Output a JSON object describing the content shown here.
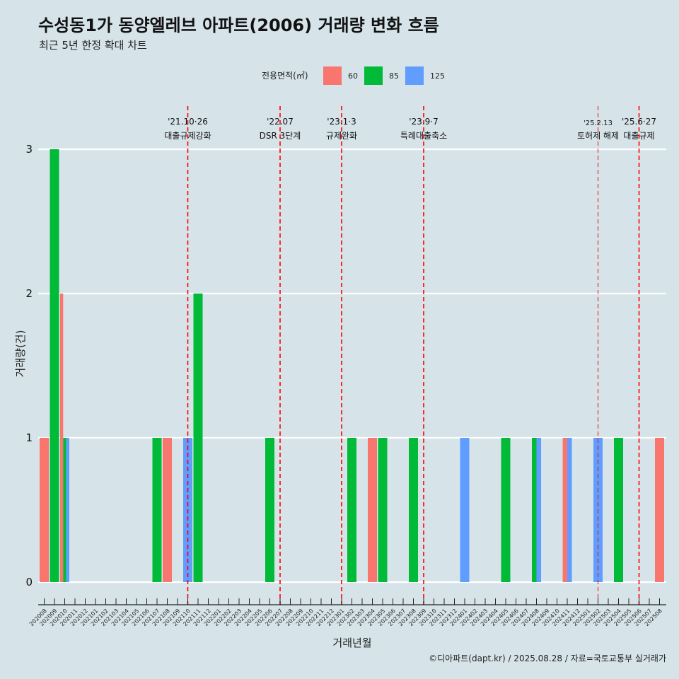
{
  "chart_data": {
    "type": "bar",
    "title": "수성동1가 동양엘레브 아파트(2006) 거래량 변화 흐름",
    "subtitle": "최근 5년 한정 확대 차트",
    "xlabel": "거래년월",
    "ylabel": "거래량(건)",
    "ylim": [
      0,
      3
    ],
    "yticks": [
      0,
      1,
      2,
      3
    ],
    "caption": "©디아파트(dapt.kr) / 2025.08.28 / 자료=국토교통부 실거래가",
    "legend": {
      "title": "전용면적(㎡)",
      "position": "top",
      "entries": [
        {
          "name": "60",
          "color": "#f8766d"
        },
        {
          "name": "85",
          "color": "#00ba38"
        },
        {
          "name": "125",
          "color": "#619cff"
        }
      ]
    },
    "categories": [
      "202008",
      "202009",
      "202010",
      "202011",
      "202012",
      "202101",
      "202102",
      "202103",
      "202104",
      "202105",
      "202106",
      "202107",
      "202108",
      "202109",
      "202110",
      "202111",
      "202112",
      "202201",
      "202202",
      "202203",
      "202204",
      "202205",
      "202206",
      "202207",
      "202208",
      "202209",
      "202210",
      "202211",
      "202212",
      "202301",
      "202302",
      "202303",
      "202304",
      "202305",
      "202306",
      "202307",
      "202308",
      "202309",
      "202310",
      "202311",
      "202312",
      "202401",
      "202402",
      "202403",
      "202404",
      "202405",
      "202406",
      "202407",
      "202408",
      "202409",
      "202410",
      "202411",
      "202412",
      "202501",
      "202502",
      "202503",
      "202504",
      "202505",
      "202506",
      "202507",
      "202508"
    ],
    "bars": [
      {
        "month": "202008",
        "series": "60",
        "value": 1,
        "slot": 0,
        "slots": 1
      },
      {
        "month": "202009",
        "series": "85",
        "value": 3,
        "slot": 0,
        "slots": 1
      },
      {
        "month": "202010",
        "series": "60",
        "value": 2,
        "slot": 0,
        "slots": 3
      },
      {
        "month": "202010",
        "series": "85",
        "value": 1,
        "slot": 1,
        "slots": 3
      },
      {
        "month": "202010",
        "series": "125",
        "value": 1,
        "slot": 2,
        "slots": 3
      },
      {
        "month": "202107",
        "series": "85",
        "value": 1,
        "slot": 0,
        "slots": 1
      },
      {
        "month": "202108",
        "series": "60",
        "value": 1,
        "slot": 0,
        "slots": 1
      },
      {
        "month": "202110",
        "series": "125",
        "value": 1,
        "slot": 0,
        "slots": 1
      },
      {
        "month": "202111",
        "series": "85",
        "value": 2,
        "slot": 0,
        "slots": 1
      },
      {
        "month": "202206",
        "series": "85",
        "value": 1,
        "slot": 0,
        "slots": 1
      },
      {
        "month": "202302",
        "series": "85",
        "value": 1,
        "slot": 0,
        "slots": 1
      },
      {
        "month": "202304",
        "series": "60",
        "value": 1,
        "slot": 0,
        "slots": 1
      },
      {
        "month": "202305",
        "series": "85",
        "value": 1,
        "slot": 0,
        "slots": 1
      },
      {
        "month": "202308",
        "series": "85",
        "value": 1,
        "slot": 0,
        "slots": 1
      },
      {
        "month": "202401",
        "series": "125",
        "value": 1,
        "slot": 0,
        "slots": 1
      },
      {
        "month": "202405",
        "series": "85",
        "value": 1,
        "slot": 0,
        "slots": 1
      },
      {
        "month": "202408",
        "series": "85",
        "value": 1,
        "slot": 0,
        "slots": 2
      },
      {
        "month": "202408",
        "series": "125",
        "value": 1,
        "slot": 1,
        "slots": 2
      },
      {
        "month": "202411",
        "series": "60",
        "value": 1,
        "slot": 0,
        "slots": 2
      },
      {
        "month": "202411",
        "series": "125",
        "value": 1,
        "slot": 1,
        "slots": 2
      },
      {
        "month": "202502",
        "series": "125",
        "value": 1,
        "slot": 0,
        "slots": 1
      },
      {
        "month": "202504",
        "series": "85",
        "value": 1,
        "slot": 0,
        "slots": 1
      },
      {
        "month": "202508",
        "series": "60",
        "value": 1,
        "slot": 0,
        "slots": 1
      }
    ],
    "events": [
      {
        "x": 14.0,
        "date": "'21.10·26",
        "label": "대출규제강화",
        "small": false
      },
      {
        "x": 23.0,
        "date": "'22.07",
        "label": "DSR 3단계",
        "small": false
      },
      {
        "x": 29.0,
        "date": "'23.1·3",
        "label": "규제완화",
        "small": false
      },
      {
        "x": 37.0,
        "date": "'23.9·7",
        "label": "특례대출축소",
        "small": false
      },
      {
        "x": 54.0,
        "date": "'25.2.13",
        "label": "토허제 해제",
        "small": true
      },
      {
        "x": 58.0,
        "date": "'25.6·27",
        "label": "대출규제",
        "small": false
      }
    ]
  }
}
